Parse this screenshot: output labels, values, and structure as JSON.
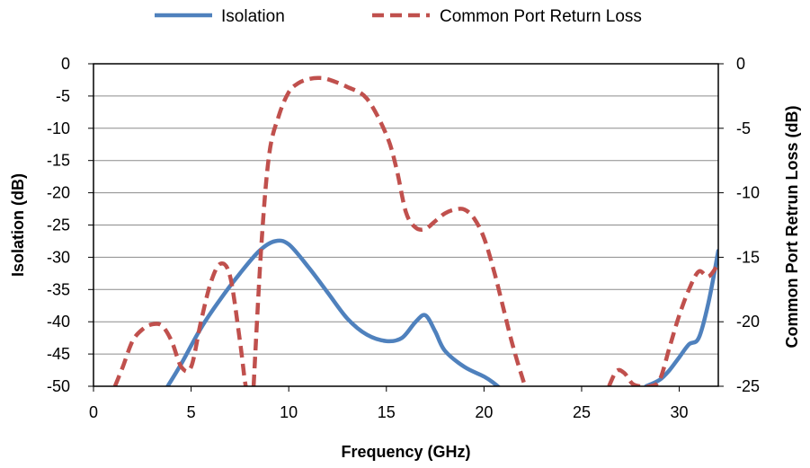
{
  "chart_data": {
    "type": "line",
    "xlabel": "Frequency (GHz)",
    "ylabel_left": "Isolation (dB)",
    "ylabel_right": "Common Port Retrun Loss (dB)",
    "xlim": [
      0,
      32
    ],
    "ylim_left": [
      -50,
      0
    ],
    "ylim_right": [
      -25,
      0
    ],
    "x_ticks": [
      0,
      5,
      10,
      15,
      20,
      25,
      30
    ],
    "y_ticks_left": [
      0,
      -5,
      -10,
      -15,
      -20,
      -25,
      -30,
      -35,
      -40,
      -45,
      -50
    ],
    "y_ticks_right": [
      0,
      -5,
      -10,
      -15,
      -20,
      -25
    ],
    "grid": true,
    "legend_position": "top",
    "series": [
      {
        "name": "Isolation",
        "axis": "left",
        "color": "#4F81BD",
        "style": "solid",
        "x": [
          3.8,
          4.5,
          5.5,
          6.5,
          7.5,
          8.5,
          9.3,
          10,
          11,
          12,
          13,
          14,
          15,
          15.8,
          16.5,
          17,
          17.5,
          18,
          19,
          20,
          20.5,
          20.9
        ],
        "y": [
          -50,
          -46.5,
          -41,
          -36.5,
          -32.5,
          -29,
          -27.5,
          -28,
          -31.5,
          -35.5,
          -39.5,
          -42,
          -43,
          -42.5,
          -40,
          -39,
          -41.5,
          -44.5,
          -47,
          -48.5,
          -49.5,
          -50.5
        ]
      },
      {
        "name": "Isolation",
        "axis": "left",
        "color": "#4F81BD",
        "style": "solid",
        "x": [
          28.3,
          29,
          29.5,
          30,
          30.5,
          31,
          31.5,
          32
        ],
        "y": [
          -50,
          -49,
          -47.5,
          -45.5,
          -43.5,
          -42.5,
          -37,
          -29
        ]
      },
      {
        "name": "Common Port Return Loss",
        "axis": "right",
        "color": "#C0504D",
        "style": "dashed",
        "x": [
          1.1,
          1.5,
          2,
          2.5,
          3,
          3.5,
          4,
          4.5,
          5,
          5.5,
          6,
          6.5,
          7,
          7.5,
          7.8,
          8
        ],
        "y": [
          -25,
          -23.5,
          -21.5,
          -20.6,
          -20.2,
          -20.3,
          -21.5,
          -23.5,
          -23.5,
          -20,
          -17,
          -15.5,
          -16.5,
          -21.5,
          -25,
          -25
        ]
      },
      {
        "name": "Common Port Return Loss",
        "axis": "right",
        "color": "#C0504D",
        "style": "dashed",
        "x": [
          8.2,
          8.6,
          9,
          9.5,
          10,
          10.5,
          11,
          11.5,
          12,
          13,
          14,
          15,
          15.5,
          16,
          16.5,
          17,
          17.5,
          18,
          18.5,
          19,
          19.5,
          20,
          20.5,
          21,
          21.5,
          22.1
        ],
        "y": [
          -25,
          -14,
          -7,
          -4,
          -2.2,
          -1.5,
          -1.2,
          -1.1,
          -1.2,
          -1.8,
          -2.7,
          -5.5,
          -8,
          -11.5,
          -12.7,
          -12.8,
          -12.2,
          -11.6,
          -11.3,
          -11.3,
          -12,
          -13.5,
          -16,
          -19,
          -22,
          -25
        ]
      },
      {
        "name": "Common Port Return Loss",
        "axis": "right",
        "color": "#C0504D",
        "style": "dashed",
        "x": [
          26.4,
          26.8,
          27.2,
          27.6,
          28,
          28.5,
          29,
          29.5,
          30,
          30.5,
          31,
          31.5,
          32
        ],
        "y": [
          -25,
          -23.8,
          -24,
          -24.8,
          -25,
          -25,
          -24.5,
          -22,
          -19.5,
          -17.5,
          -16.1,
          -16.5,
          -15.5
        ]
      }
    ],
    "legend": [
      {
        "label": "Isolation",
        "color": "#4F81BD",
        "style": "solid"
      },
      {
        "label": "Common Port Return Loss",
        "color": "#C0504D",
        "style": "dashed"
      }
    ]
  }
}
